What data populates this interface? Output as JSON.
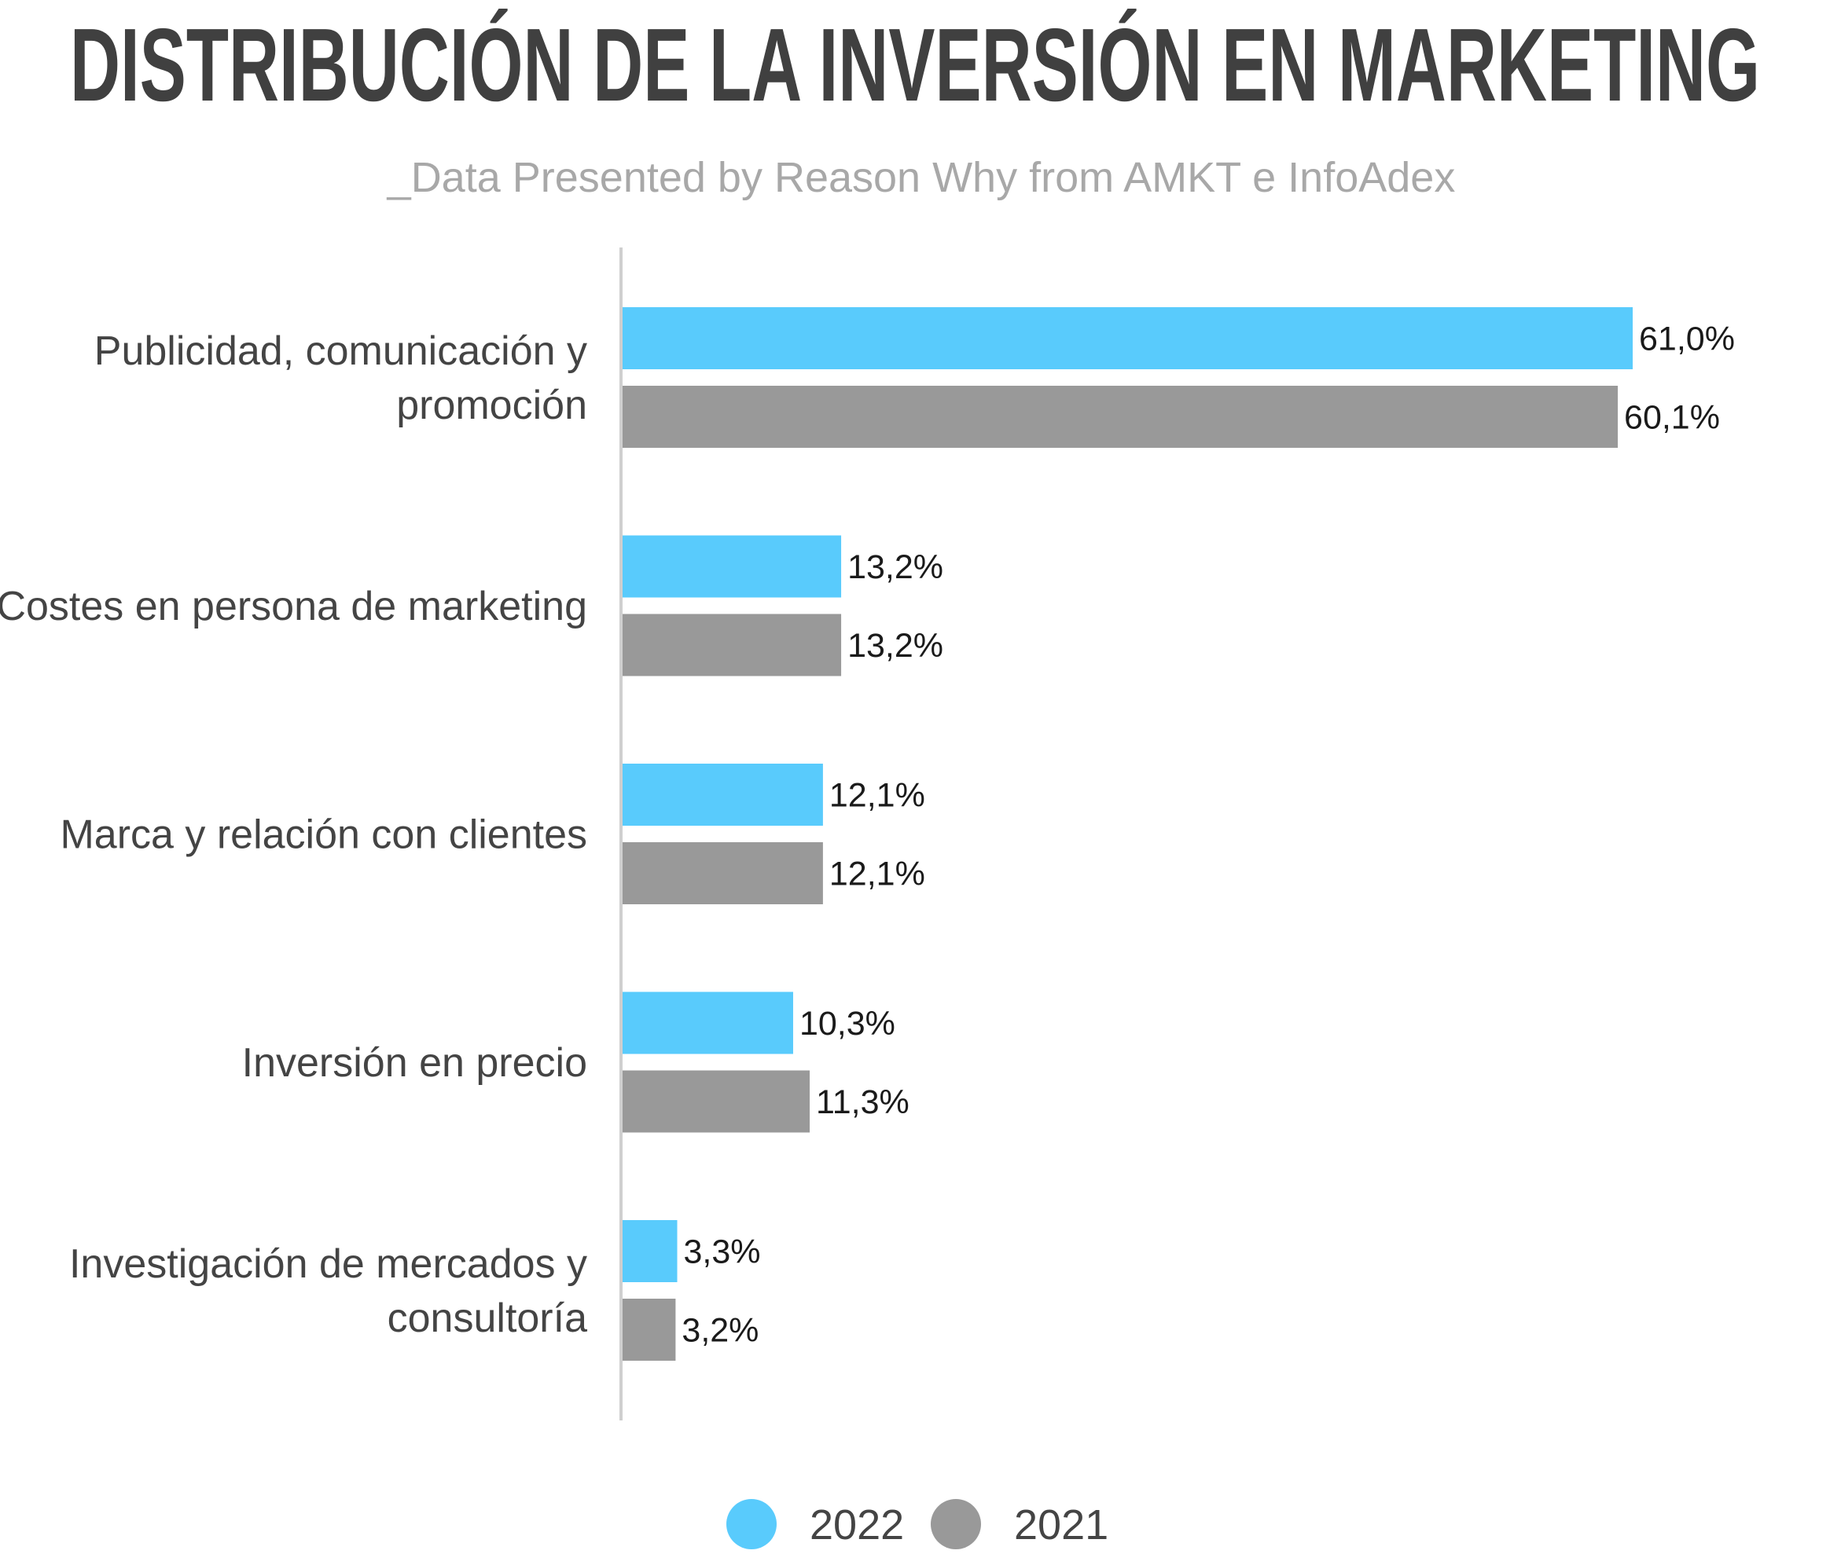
{
  "chart_data": {
    "type": "bar",
    "orientation": "horizontal",
    "title": "DISTRIBUCIÓN DE LA INVERSIÓN EN MARKETING",
    "subtitle": "_Data Presented by Reason Why from AMKT e InfoAdex",
    "categories": [
      [
        "Publicidad, comunicación y",
        "promoción"
      ],
      [
        "Costes en persona de marketing"
      ],
      [
        "Marca y relación con clientes"
      ],
      [
        "Inversión en precio"
      ],
      [
        "Investigación de mercados y",
        "consultoría"
      ]
    ],
    "series": [
      {
        "name": "2022",
        "color": "#59cbfc",
        "values": [
          61.0,
          13.2,
          12.1,
          10.3,
          3.3
        ],
        "labels": [
          "61,0%",
          "13,2%",
          "12,1%",
          "10,3%",
          "3,3%"
        ]
      },
      {
        "name": "2021",
        "color": "#999999",
        "values": [
          60.1,
          13.2,
          12.1,
          11.3,
          3.2
        ],
        "labels": [
          "60,1%",
          "13,2%",
          "12,1%",
          "11,3%",
          "3,2%"
        ]
      }
    ],
    "xlim": [
      0,
      61.0
    ],
    "grid": false,
    "legend_position": "bottom"
  }
}
